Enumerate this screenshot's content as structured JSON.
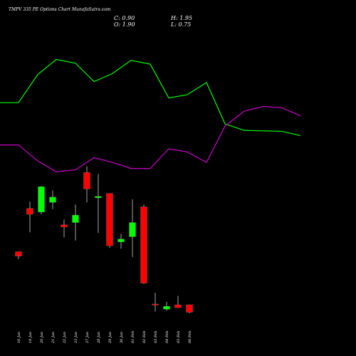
{
  "header": {
    "title": "TMPV 335 PE Options  Chart MunafaSutra.com",
    "close": "C: 0.90",
    "high": "H: 1.95",
    "open": "O: 1.90",
    "low": "L: 0.75"
  },
  "colors": {
    "background": "#000000",
    "up": "#00ff00",
    "down": "#ff0000",
    "line_upper": "#00ff00",
    "line_lower": "#cc00cc"
  },
  "chart_data": {
    "type": "candlestick",
    "title": "TMPV 335 PE Options  Chart MunafaSutra.com",
    "categories": [
      "16 Jan",
      "19 Jan",
      "20 Jan",
      "21 Jan",
      "22 Jan",
      "23 Jan",
      "27 Jan",
      "28 Jan",
      "29 Jan",
      "30 Jan",
      "01 Feb",
      "02 Feb",
      "03 Feb",
      "04 Feb",
      "05 Feb",
      "06 Feb"
    ],
    "ohlc": [
      {
        "open": 9.0,
        "high": 9.0,
        "low": 8.0,
        "close": 8.4,
        "direction": "down"
      },
      {
        "open": 14.8,
        "high": 15.7,
        "low": 11.6,
        "close": 14.0,
        "direction": "down"
      },
      {
        "open": 14.3,
        "high": 17.8,
        "low": 14.0,
        "close": 17.7,
        "direction": "up"
      },
      {
        "open": 15.6,
        "high": 17.2,
        "low": 14.7,
        "close": 16.3,
        "direction": "up"
      },
      {
        "open": 12.6,
        "high": 13.3,
        "low": 10.9,
        "close": 12.3,
        "direction": "down"
      },
      {
        "open": 12.9,
        "high": 15.3,
        "low": 10.5,
        "close": 13.9,
        "direction": "up"
      },
      {
        "open": 19.6,
        "high": 20.4,
        "low": 15.6,
        "close": 17.4,
        "direction": "down"
      },
      {
        "open": 16.2,
        "high": 19.4,
        "low": 11.5,
        "close": 16.4,
        "direction": "up"
      },
      {
        "open": 16.8,
        "high": 16.8,
        "low": 9.5,
        "close": 9.8,
        "direction": "down"
      },
      {
        "open": 10.3,
        "high": 11.4,
        "low": 9.4,
        "close": 10.7,
        "direction": "up"
      },
      {
        "open": 11.0,
        "high": 16.0,
        "low": 8.3,
        "close": 12.9,
        "direction": "up"
      },
      {
        "open": 15.0,
        "high": 15.3,
        "low": 4.7,
        "close": 4.8,
        "direction": "down"
      },
      {
        "open": 2.0,
        "high": 3.5,
        "low": 1.0,
        "close": 1.9,
        "direction": "down"
      },
      {
        "open": 1.3,
        "high": 2.3,
        "low": 1.1,
        "close": 1.7,
        "direction": "up"
      },
      {
        "open": 1.9,
        "high": 3.1,
        "low": 1.5,
        "close": 1.5,
        "direction": "down"
      },
      {
        "open": 1.9,
        "high": 1.95,
        "low": 0.75,
        "close": 0.9,
        "direction": "down"
      }
    ],
    "overlay_lines": [
      {
        "color": "#00ff00",
        "values": [
          38.0,
          38.0,
          44.0,
          47.2,
          46.4,
          42.5,
          44.2,
          47.0,
          46.2,
          39.0,
          39.7,
          42.3,
          34.2,
          32.1,
          32.0,
          31.0
        ]
      },
      {
        "color": "#cc00cc",
        "values": [
          29.0,
          29.0,
          25.6,
          23.3,
          23.7,
          26.3,
          25.3,
          24.0,
          24.0,
          28.2,
          27.5,
          25.3,
          31.5,
          34.5,
          35.3,
          35.0,
          33.8
        ]
      }
    ],
    "upper_line_extra": [
      36.8,
      36.0,
      36.0,
      36.0,
      35.0
    ],
    "ylim": [
      0,
      55
    ],
    "xlabel": "",
    "ylabel": "",
    "grid": false,
    "legend": "none"
  }
}
